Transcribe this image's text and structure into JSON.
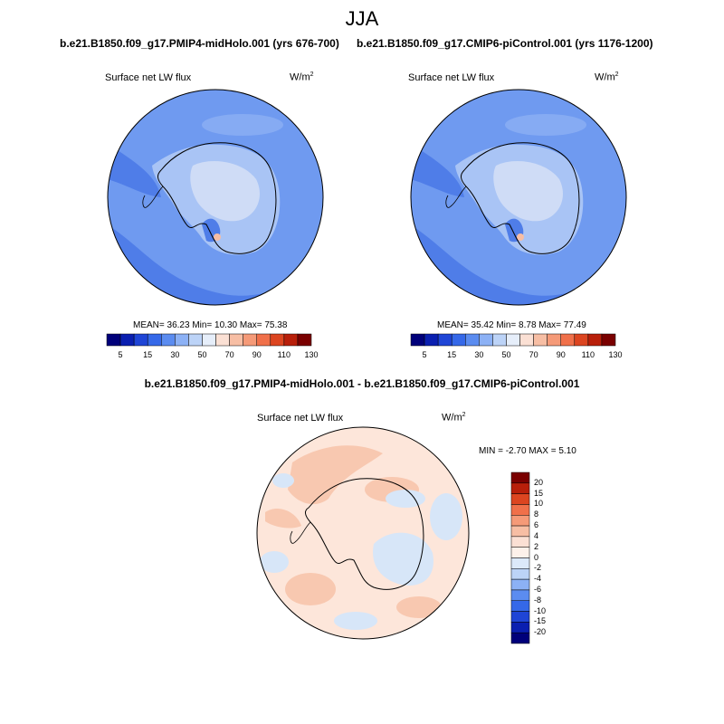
{
  "figure": {
    "title": "JJA",
    "diff_title": "b.e21.B1850.f09_g17.PMIP4-midHolo.001 - b.e21.B1850.f09_g17.CMIP6-piControl.001"
  },
  "panels": [
    {
      "title": "b.e21.B1850.f09_g17.PMIP4-midHolo.001 (yrs 676-700)",
      "variable": "Surface net LW flux",
      "units_base": "W/m",
      "units_exp": "2",
      "stats": "MEAN=  36.23  Min=  10.30  Max=  75.38"
    },
    {
      "title": "b.e21.B1850.f09_g17.CMIP6-piControl.001 (yrs 1176-1200)",
      "variable": "Surface net LW flux",
      "units_base": "W/m",
      "units_exp": "2",
      "stats": "MEAN=  35.42  Min=   8.78  Max=  77.49"
    },
    {
      "variable": "Surface net LW flux",
      "units_base": "W/m",
      "units_exp": "2",
      "stats": "MIN =  -2.70 MAX =   5.10"
    }
  ],
  "colorbar_main": {
    "colors": [
      "#00007a",
      "#0a1fb0",
      "#1f45d6",
      "#3568e8",
      "#5b8cf0",
      "#8cb1f5",
      "#bcd3f7",
      "#e6eefa",
      "#fbe0d4",
      "#f7bea4",
      "#f59a78",
      "#f0704a",
      "#dc4520",
      "#b81f0a",
      "#7a0000"
    ],
    "tick_labels": [
      "5",
      "15",
      "30",
      "50",
      "70",
      "90",
      "110",
      "130"
    ]
  },
  "colorbar_diff": {
    "colors": [
      "#7a0000",
      "#b81f0a",
      "#dc4520",
      "#f0704a",
      "#f59a78",
      "#f7bea4",
      "#fbe0d4",
      "#fdf1ea",
      "#dce9fa",
      "#bcd3f7",
      "#8cb1f5",
      "#5b8cf0",
      "#3568e8",
      "#1f45d6",
      "#0a1fb0",
      "#00007a"
    ],
    "tick_labels": [
      "20",
      "15",
      "10",
      "8",
      "6",
      "4",
      "2",
      "0",
      "-2",
      "-4",
      "-6",
      "-8",
      "-10",
      "-15",
      "-20"
    ]
  },
  "map_colors": {
    "ocean_main": "#6f9af0",
    "ocean_dark": "#4f7de8",
    "land_light": "#a9c4f5",
    "land_pale": "#cfdcf6",
    "diff_base": "#fde6da",
    "diff_warm": "#f8c8b0",
    "diff_cool": "#d7e6f8"
  }
}
